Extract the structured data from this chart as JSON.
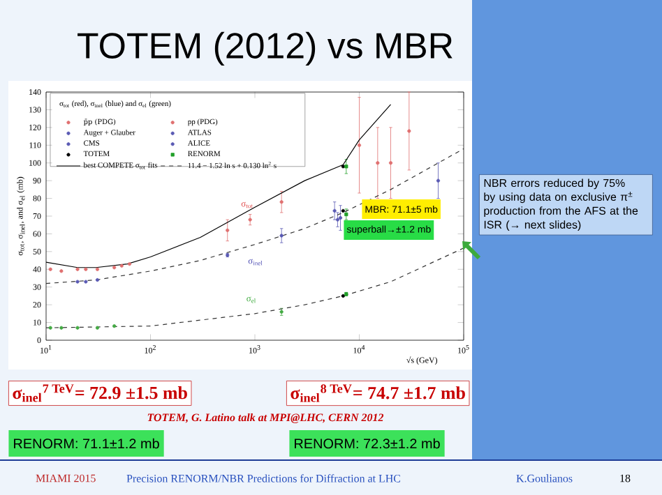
{
  "chart_data": {
    "type": "scatter",
    "title": "TOTEM (2012) vs MBR",
    "xlabel": "√s (GeV)",
    "ylabel": "σ$_{tot}$, σ$_{inel}$, and σ$_{el}$ (mb)",
    "legend_title": "σ$_{tot}$ (red), σ$_{inel}$ (blue) and σ$_{el}$ (green)",
    "log": "x",
    "legend": "top left",
    "xlim": [
      10,
      100000
    ],
    "ylim": [
      0,
      140
    ],
    "xticks": [
      {
        "value": 10,
        "label": "10$^{1}$"
      },
      {
        "value": 100,
        "label": "10$^{2}$"
      },
      {
        "value": 1000,
        "label": "10$^{3}$"
      },
      {
        "value": 10000,
        "label": "10$^{4}$"
      },
      {
        "value": 100000,
        "label": "10$^{5}$"
      }
    ],
    "yticks": [
      0,
      10,
      20,
      30,
      40,
      50,
      60,
      70,
      80,
      90,
      100,
      110,
      120,
      130,
      140
    ],
    "series": [
      {
        "name": "p̄p (PDG)",
        "marker": "circle",
        "x": [
          546,
          900,
          1800,
          546,
          1800,
          1800
        ],
        "values": [
          62,
          68,
          78,
          48,
          59,
          16
        ],
        "errors": [
          6,
          3,
          6,
          1,
          4,
          2
        ],
        "colors": [
          "#e07070",
          "#e07070",
          "#e07070",
          "#5a5ab4",
          "#5a5ab4",
          "#44aa44"
        ]
      },
      {
        "name": "pp (PDG)",
        "marker": "circle",
        "x": [
          11,
          14,
          20,
          24,
          31,
          45,
          53,
          63,
          20,
          24,
          31,
          11,
          14,
          20,
          31,
          45,
          10000,
          15000,
          20000,
          30000
        ],
        "values": [
          40,
          39,
          40,
          40,
          40,
          41,
          42,
          43,
          33,
          33,
          34,
          7,
          7,
          7,
          7,
          8,
          110,
          100,
          100,
          118
        ],
        "errors": [
          null,
          null,
          null,
          null,
          null,
          null,
          null,
          null,
          null,
          null,
          null,
          null,
          null,
          null,
          null,
          null,
          27,
          20,
          20,
          22
        ],
        "colors": [
          "#e07070",
          "#e07070",
          "#e07070",
          "#e07070",
          "#e07070",
          "#e07070",
          "#e07070",
          "#e07070",
          "#5a5ab4",
          "#5a5ab4",
          "#5a5ab4",
          "#44aa44",
          "#44aa44",
          "#44aa44",
          "#44aa44",
          "#44aa44",
          "#e07070",
          "#e07070",
          "#e07070",
          "#e07070"
        ]
      },
      {
        "name": "Auger + Glauber",
        "marker": "circle",
        "x": [
          57000
        ],
        "values": [
          90
        ],
        "errors": [
          10
        ],
        "colors": [
          "#5a5ab4"
        ]
      },
      {
        "name": "ATLAS",
        "marker": "circle",
        "x": [
          6600
        ],
        "values": [
          69
        ],
        "errors": [
          7
        ],
        "colors": [
          "#5a5ab4"
        ]
      },
      {
        "name": "CMS",
        "marker": "circle",
        "x": [
          6200
        ],
        "values": [
          68
        ],
        "errors": [
          4
        ],
        "colors": [
          "#5a5ab4"
        ]
      },
      {
        "name": "ALICE",
        "marker": "circle",
        "x": [
          5800
        ],
        "values": [
          73
        ],
        "errors": [
          5
        ],
        "colors": [
          "#5a5ab4"
        ]
      },
      {
        "name": "TOTEM",
        "marker": "circle",
        "x": [
          7000,
          7000,
          7000
        ],
        "values": [
          98,
          73,
          25
        ],
        "colors": [
          "#000000",
          "#000000",
          "#000000"
        ]
      },
      {
        "name": "RENORM",
        "marker": "square",
        "x": [
          7500,
          7500,
          7500
        ],
        "values": [
          98,
          71,
          26
        ],
        "errors": [
          4,
          3,
          1
        ],
        "colors": [
          "#22a02a",
          "#22a02a",
          "#22a02a"
        ]
      },
      {
        "name": "best COMPETE σ$_{tot}$ fits",
        "type": "line",
        "line_style": "solid",
        "marker": "none",
        "color": "#000000",
        "x": [
          10,
          20,
          30,
          60,
          100,
          300,
          1000,
          3000,
          7000,
          10000,
          20000
        ],
        "values": [
          44,
          41,
          41,
          43,
          47,
          58,
          75,
          90,
          99,
          113,
          133
        ]
      },
      {
        "name": "11.4 − 1.52 ln s + 0.130 ln$^{2}$ s",
        "type": "line",
        "line_style": "dashed",
        "marker": "none",
        "color": "#333333",
        "x": [
          10,
          100,
          1000,
          3000,
          7000,
          20000,
          100000
        ],
        "values": [
          7,
          8,
          15,
          20,
          25,
          33,
          52
        ]
      },
      {
        "type": "line",
        "line_style": "dashed",
        "marker": "none",
        "color": "#333333",
        "x": [
          10,
          30,
          100,
          300,
          1000,
          3000,
          7000,
          20000,
          100000
        ],
        "values": [
          32,
          34,
          39,
          45,
          54,
          63,
          72,
          85,
          108
        ]
      }
    ],
    "annotations": [
      "σ$_{tot}$",
      "σ$_{inel}$",
      "σ$_{el}$",
      "MBR: 71.1±5 mb",
      "superball→±1.2 mb",
      "NBR errors reduced by 75% by using data on exclusive π$^{±}$ production from the AFS at the ISR (→ next slides)",
      "σ$_{inel}$$^{7 TeV}$= 72.9 ±1.5 mb",
      "σ$_{inel}$$^{8 TeV}$= 74.7 ±1.7 mb",
      "TOTEM, G. Latino talk at MPI@LHC, CERN 2012",
      "RENORM: 71.1±1.2 mb",
      "RENORM: 72.3±1.2 mb",
      "MIAMI 2015",
      "Precision  RENORM/NBR Predictions for Diffraction at LHC",
      "K.Goulianos",
      "18"
    ]
  }
}
